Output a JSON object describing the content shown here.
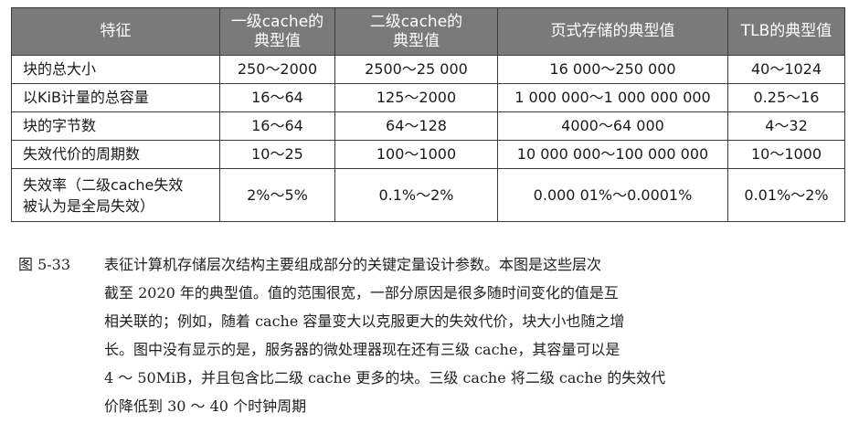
{
  "table": {
    "headers": [
      "特征",
      "一级cache的\n典型值",
      "二级cache的\n典型值",
      "页式存储的典型值",
      "TLB的典型值"
    ],
    "rows": [
      [
        "块的总大小",
        "250～2000",
        "2500～25 000",
        "16 000～250 000",
        "40～1024"
      ],
      [
        "以KiB计量的总容量",
        "16～64",
        "125～2000",
        "1 000 000～1 000 000 000",
        "0.25～16"
      ],
      [
        "块的字节数",
        "16～64",
        "64～128",
        "4000～64 000",
        "4～32"
      ],
      [
        "失效代价的周期数",
        "10～25",
        "100～1000",
        "10 000 000～100 000 000",
        "10～1000"
      ],
      [
        "失效率（二级cache失效\n被认为是全局失效）",
        "2%～5%",
        "0.1%～2%",
        "0.000 01%～0.0001%",
        "0.01%～2%"
      ]
    ]
  },
  "caption": {
    "figure_number": "图 5-33",
    "lines": [
      "表征计算机存储层次结构主要组成部分的关键定量设计参数。本图是这些层次",
      "截至 2020 年的典型值。值的范围很宽，一部分原因是很多随时间变化的值是互",
      "相关联的；例如，随着 cache 容量变大以克服更大的失效代价，块大小也随之增",
      "长。图中没有显示的是，服务器的微处理器现在还有三级 cache，其容量可以是",
      "4 ～ 50MiB，并且包含比二级 cache 更多的块。三级 cache 将二级 cache 的失效代",
      "价降低到 30 ～ 40 个时钟周期"
    ]
  }
}
